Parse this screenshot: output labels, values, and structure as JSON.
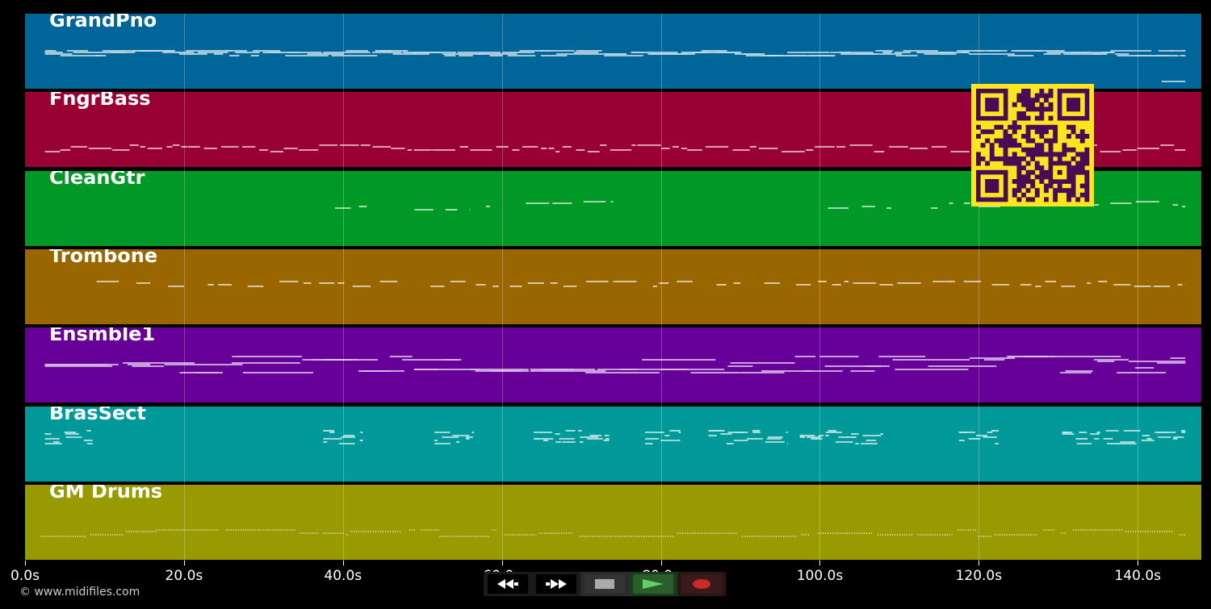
{
  "tracks": [
    {
      "name": "GrandPno",
      "color": "#006699"
    },
    {
      "name": "FngrBass",
      "color": "#990033"
    },
    {
      "name": "CleanGtr",
      "color": "#009926"
    },
    {
      "name": "Trombone",
      "color": "#996600"
    },
    {
      "name": "Ensmble1",
      "color": "#660099"
    },
    {
      "name": "BrasSect",
      "color": "#009999"
    },
    {
      "name": "GM Drums",
      "color": "#999900"
    }
  ],
  "timeline": {
    "max_seconds": 148,
    "ticks": [
      "0.0s",
      "20.0s",
      "40.0s",
      "60.0s",
      "80.0s",
      "100.0s",
      "120.0s",
      "140.0s"
    ],
    "tick_values": [
      0,
      20,
      40,
      60,
      80,
      100,
      120,
      140
    ]
  },
  "copyright": "© www.midifiles.com",
  "transport": {
    "rewind_icon": "rewind-icon",
    "fast_forward_icon": "fast-forward-icon",
    "stop_icon": "stop-icon",
    "play_icon": "play-icon",
    "record_icon": "record-icon"
  },
  "colors": {
    "qr_background": "#fce51e",
    "qr_foreground": "#4a0a55",
    "note_color": "#ffffff"
  }
}
